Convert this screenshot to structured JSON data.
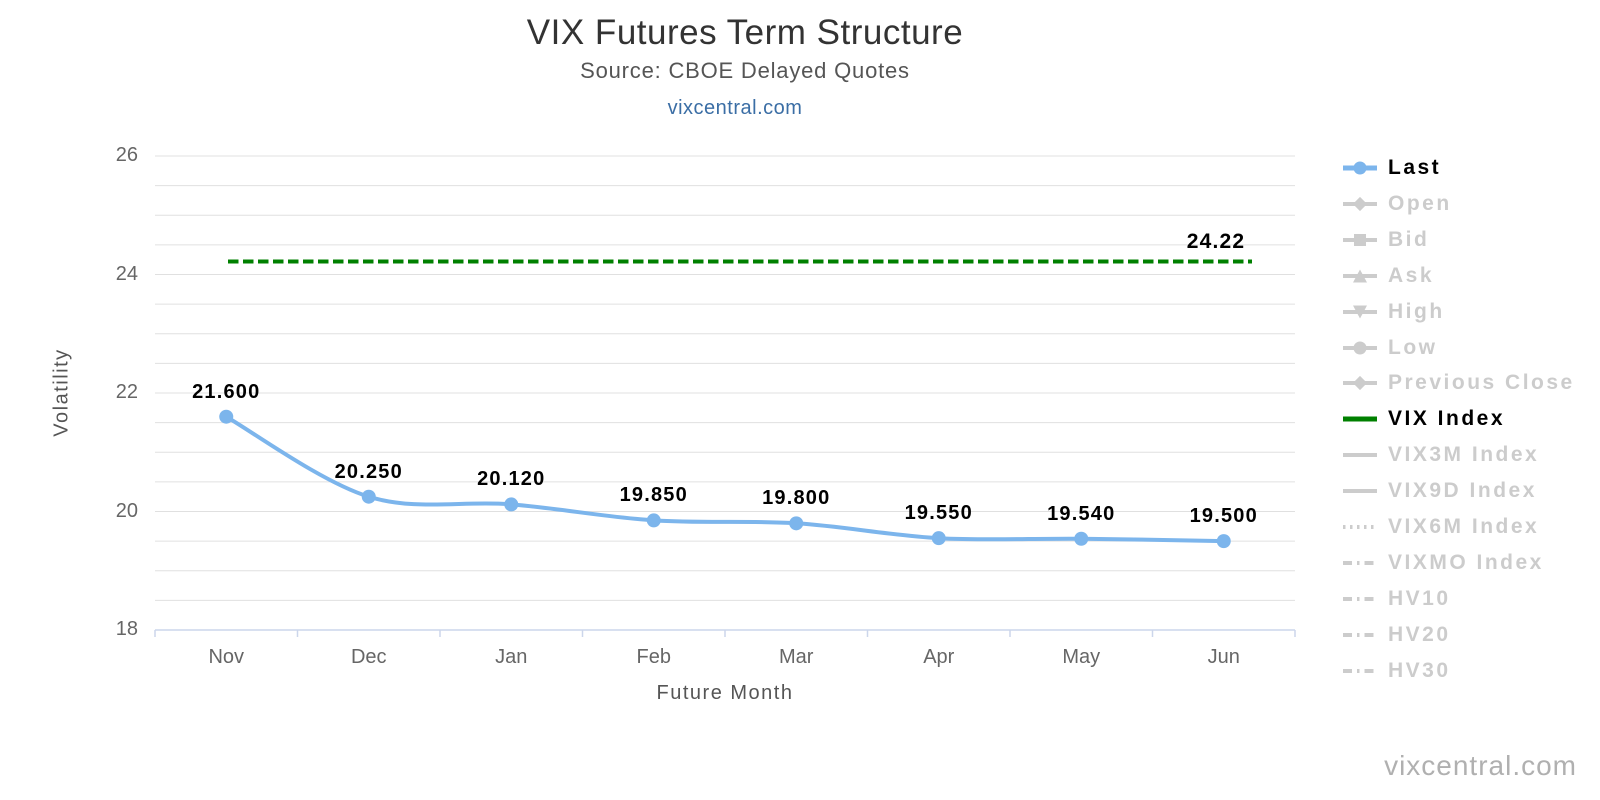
{
  "header": {
    "title": "VIX Futures Term Structure",
    "subtitle": "Source: CBOE Delayed Quotes",
    "link": "vixcentral.com"
  },
  "footer": {
    "watermark": "vixcentral.com"
  },
  "colors": {
    "accent_blue": "#7cb5ec",
    "vix_green": "#008000",
    "inactive_gray": "#cccccc",
    "grid": "#e0e0e0",
    "axis_line": "#ccd6eb",
    "label_gray": "#666666",
    "title_gray": "#333333",
    "link_blue": "#3b6ea5",
    "watermark_gray": "#b0b0b0"
  },
  "chart_data": {
    "type": "line",
    "title": "VIX Futures Term Structure",
    "subtitle": "Source: CBOE Delayed Quotes",
    "xlabel": "Future Month",
    "ylabel": "Volatility",
    "categories": [
      "Nov",
      "Dec",
      "Jan",
      "Feb",
      "Mar",
      "Apr",
      "May",
      "Jun"
    ],
    "ylim": [
      18,
      26
    ],
    "yticks": [
      18,
      20,
      22,
      24,
      26
    ],
    "minor_step": 0.5,
    "grid": true,
    "legend_position": "right",
    "series": [
      {
        "name": "Last",
        "type": "spline",
        "color": "#7cb5ec",
        "values": [
          21.6,
          20.25,
          20.12,
          19.85,
          19.8,
          19.55,
          19.54,
          19.5
        ],
        "labels": [
          "21.600",
          "20.250",
          "20.120",
          "19.850",
          "19.800",
          "19.550",
          "19.540",
          "19.500"
        ]
      },
      {
        "name": "VIX Index",
        "type": "hline",
        "color": "#008000",
        "dash": true,
        "value": 24.22,
        "label": "24.22"
      }
    ],
    "legend": [
      {
        "label": "Last",
        "marker": "circle",
        "line": "solid",
        "color": "#7cb5ec",
        "active": true
      },
      {
        "label": "Open",
        "marker": "diamond",
        "line": "solid",
        "active": false
      },
      {
        "label": "Bid",
        "marker": "square",
        "line": "solid",
        "active": false
      },
      {
        "label": "Ask",
        "marker": "triangle-up",
        "line": "solid",
        "active": false
      },
      {
        "label": "High",
        "marker": "triangle-down",
        "line": "solid",
        "active": false
      },
      {
        "label": "Low",
        "marker": "circle",
        "line": "solid",
        "active": false
      },
      {
        "label": "Previous Close",
        "marker": "diamond",
        "line": "solid",
        "active": false
      },
      {
        "label": "VIX Index",
        "marker": "none",
        "line": "solid",
        "color": "#008000",
        "active": true
      },
      {
        "label": "VIX3M Index",
        "marker": "none",
        "line": "solid",
        "active": false
      },
      {
        "label": "VIX9D Index",
        "marker": "none",
        "line": "solid",
        "active": false
      },
      {
        "label": "VIX6M Index",
        "marker": "none",
        "line": "dot",
        "active": false
      },
      {
        "label": "VIXMO Index",
        "marker": "none",
        "line": "dashdot",
        "active": false
      },
      {
        "label": "HV10",
        "marker": "none",
        "line": "dashdot",
        "active": false
      },
      {
        "label": "HV20",
        "marker": "none",
        "line": "dashdot",
        "active": false
      },
      {
        "label": "HV30",
        "marker": "none",
        "line": "dashdot",
        "active": false
      }
    ]
  }
}
